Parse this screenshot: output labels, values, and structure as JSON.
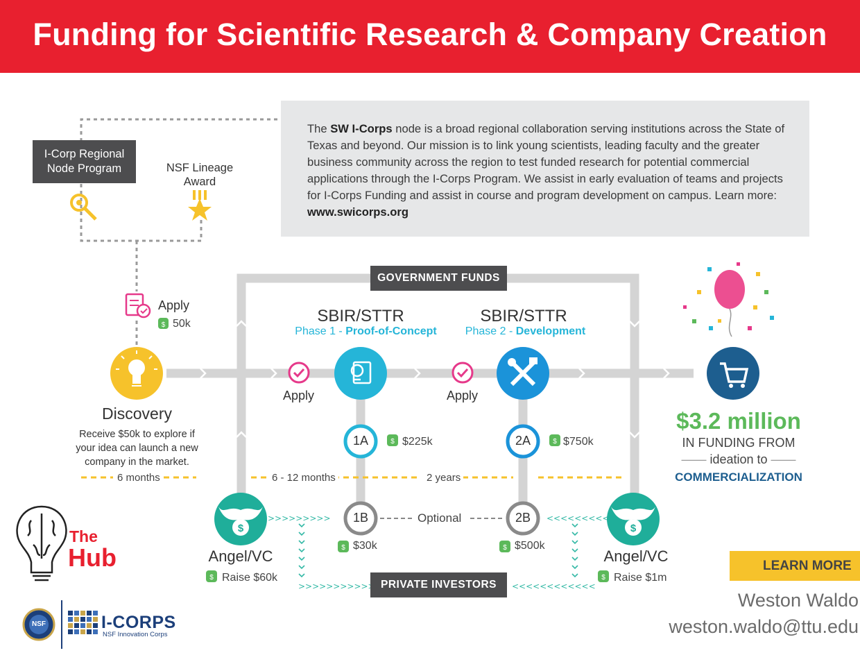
{
  "banner": {
    "title": "Funding for Scientific Research & Company Creation"
  },
  "intro": {
    "pre": "The ",
    "highlight": "SW I-Corps",
    "body": " node is a broad regional collaboration serving institutions across the State of Texas and beyond. Our mission is to link young scientists, leading faculty and the greater business community across the region to test funded research for potential commercial applications through the I-Corps Program. We assist in early evaluation of teams and projects for I-Corps Funding and assist in course and program development on campus.  Learn more: ",
    "link": "www.swicorps.org"
  },
  "left_panel": {
    "node_program_line1": "I-Corp Regional",
    "node_program_line2": "Node Program",
    "lineage_line1": "NSF Lineage",
    "lineage_line2": "Award",
    "apply_label": "Apply",
    "apply_amount": "50k"
  },
  "discovery": {
    "title": "Discovery",
    "desc_line1": "Receive $50k to explore if",
    "desc_line2": "your idea can launch a new",
    "desc_line3": "company in the market.",
    "duration": "6 months"
  },
  "gov_funds": "GOVERNMENT FUNDS",
  "private_investors": "PRIVATE INVESTORS",
  "phase1": {
    "title": "SBIR/STTR",
    "sub_prefix": "Phase 1 - ",
    "sub_bold": "Proof-of-Concept",
    "apply": "Apply",
    "a_label": "1A",
    "a_amount": "$225k",
    "b_label": "1B",
    "b_amount": "$30k"
  },
  "phase2": {
    "title": "SBIR/STTR",
    "sub_prefix": "Phase 2 - ",
    "sub_bold": "Development",
    "apply": "Apply",
    "a_label": "2A",
    "a_amount": "$750k",
    "b_label": "2B",
    "b_amount": "$500k"
  },
  "durations": {
    "mid": "6 - 12 months",
    "long": "2 years"
  },
  "optional": "Optional",
  "angel_left": {
    "title": "Angel/VC",
    "raise": "Raise $60k"
  },
  "angel_right": {
    "title": "Angel/VC",
    "raise": "Raise $1m"
  },
  "result": {
    "amount": "$3.2 million",
    "line1": "IN FUNDING FROM",
    "line2": "ideation to",
    "line3": "COMMERCIALIZATION"
  },
  "hub_logo": {
    "the": "The",
    "hub": "Hub"
  },
  "icorps_logo": {
    "nsf": "NSF",
    "mark": "I-CORPS",
    "tag": "NSF Innovation Corps"
  },
  "learn_more": "LEARN MORE",
  "contact": {
    "name": "Weston Waldo",
    "email": "weston.waldo@ttu.edu"
  },
  "colors": {
    "banner": "#e8202f",
    "yellow": "#f6c22b",
    "cyan": "#25b5d8",
    "green": "#5cb95a",
    "teal": "#1fae9a",
    "navy": "#1d5e8f",
    "pink": "#e6398a",
    "gray_track": "#d4d4d4"
  }
}
